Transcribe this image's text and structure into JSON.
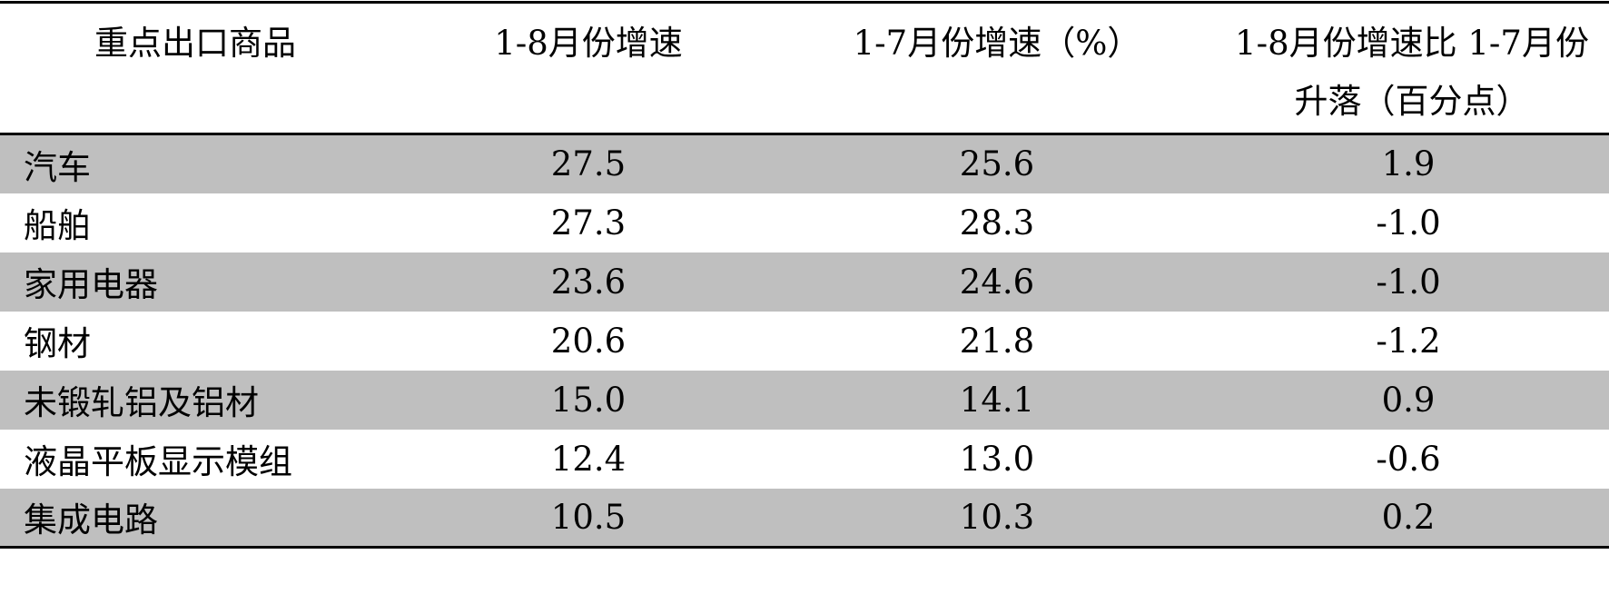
{
  "table": {
    "header": [
      "重点出口商品",
      "1-8月份增速",
      "1-7月份增速（%）",
      "1-8月份增速比 1-7月份升落（百分点）"
    ],
    "rows": [
      [
        "汽车",
        "27.5",
        "25.6",
        "1.9"
      ],
      [
        "船舶",
        "27.3",
        "28.3",
        "-1.0"
      ],
      [
        "家用电器",
        "23.6",
        "24.6",
        "-1.0"
      ],
      [
        "钢材",
        "20.6",
        "21.8",
        "-1.2"
      ],
      [
        "未锻轧铝及铝材",
        "15.0",
        "14.1",
        "0.9"
      ],
      [
        "液晶平板显示模组",
        "12.4",
        "13.0",
        "-0.6"
      ],
      [
        "集成电路",
        "10.5",
        "10.3",
        "0.2"
      ]
    ]
  }
}
